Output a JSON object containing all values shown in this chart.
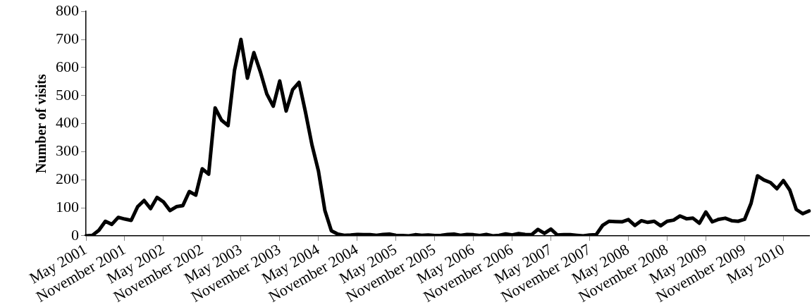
{
  "chart_data": {
    "type": "line",
    "ylabel": "Number of visits",
    "categories": [
      "May 2001",
      null,
      null,
      null,
      null,
      null,
      "November 2001",
      null,
      null,
      null,
      null,
      null,
      "May 2002",
      null,
      null,
      null,
      null,
      null,
      "November 2002",
      null,
      null,
      null,
      null,
      null,
      "May 2003",
      null,
      null,
      null,
      null,
      null,
      "November 2003",
      null,
      null,
      null,
      null,
      null,
      "May 2004",
      null,
      null,
      null,
      null,
      null,
      "November 2004",
      null,
      null,
      null,
      null,
      null,
      "May 2005",
      null,
      null,
      null,
      null,
      null,
      "November 2005",
      null,
      null,
      null,
      null,
      null,
      "May 2006",
      null,
      null,
      null,
      null,
      null,
      "November 2006",
      null,
      null,
      null,
      null,
      null,
      "May 2007",
      null,
      null,
      null,
      null,
      null,
      "November 2007",
      null,
      null,
      null,
      null,
      null,
      "May 2008",
      null,
      null,
      null,
      null,
      null,
      "November 2008",
      null,
      null,
      null,
      null,
      null,
      "May 2009",
      null,
      null,
      null,
      null,
      null,
      "November 2009",
      null,
      null,
      null,
      null,
      null,
      "May 2010",
      null,
      null,
      null,
      null
    ],
    "values": [
      0,
      2,
      20,
      52,
      41,
      66,
      60,
      55,
      104,
      126,
      97,
      137,
      121,
      90,
      104,
      108,
      158,
      145,
      239,
      220,
      456,
      412,
      393,
      590,
      700,
      562,
      653,
      585,
      506,
      462,
      552,
      445,
      521,
      547,
      440,
      324,
      231,
      90,
      18,
      6,
      2,
      3,
      5,
      4,
      4,
      2,
      5,
      6,
      2,
      1,
      0,
      4,
      2,
      3,
      1,
      2,
      5,
      6,
      2,
      5,
      4,
      1,
      5,
      0,
      2,
      7,
      3,
      8,
      5,
      4,
      23,
      9,
      24,
      3,
      4,
      4,
      2,
      0,
      3,
      4,
      37,
      52,
      51,
      50,
      58,
      37,
      54,
      48,
      52,
      36,
      52,
      56,
      71,
      61,
      63,
      45,
      85,
      50,
      59,
      63,
      54,
      52,
      59,
      116,
      214,
      199,
      190,
      168,
      197,
      163,
      94,
      79,
      89
    ],
    "color": "#000000",
    "ylim": [
      0,
      800
    ],
    "yticks": [
      0,
      100,
      200,
      300,
      400,
      500,
      600,
      700,
      800
    ],
    "grid": false,
    "legend": false,
    "marker": "none",
    "line_style": "solid"
  }
}
